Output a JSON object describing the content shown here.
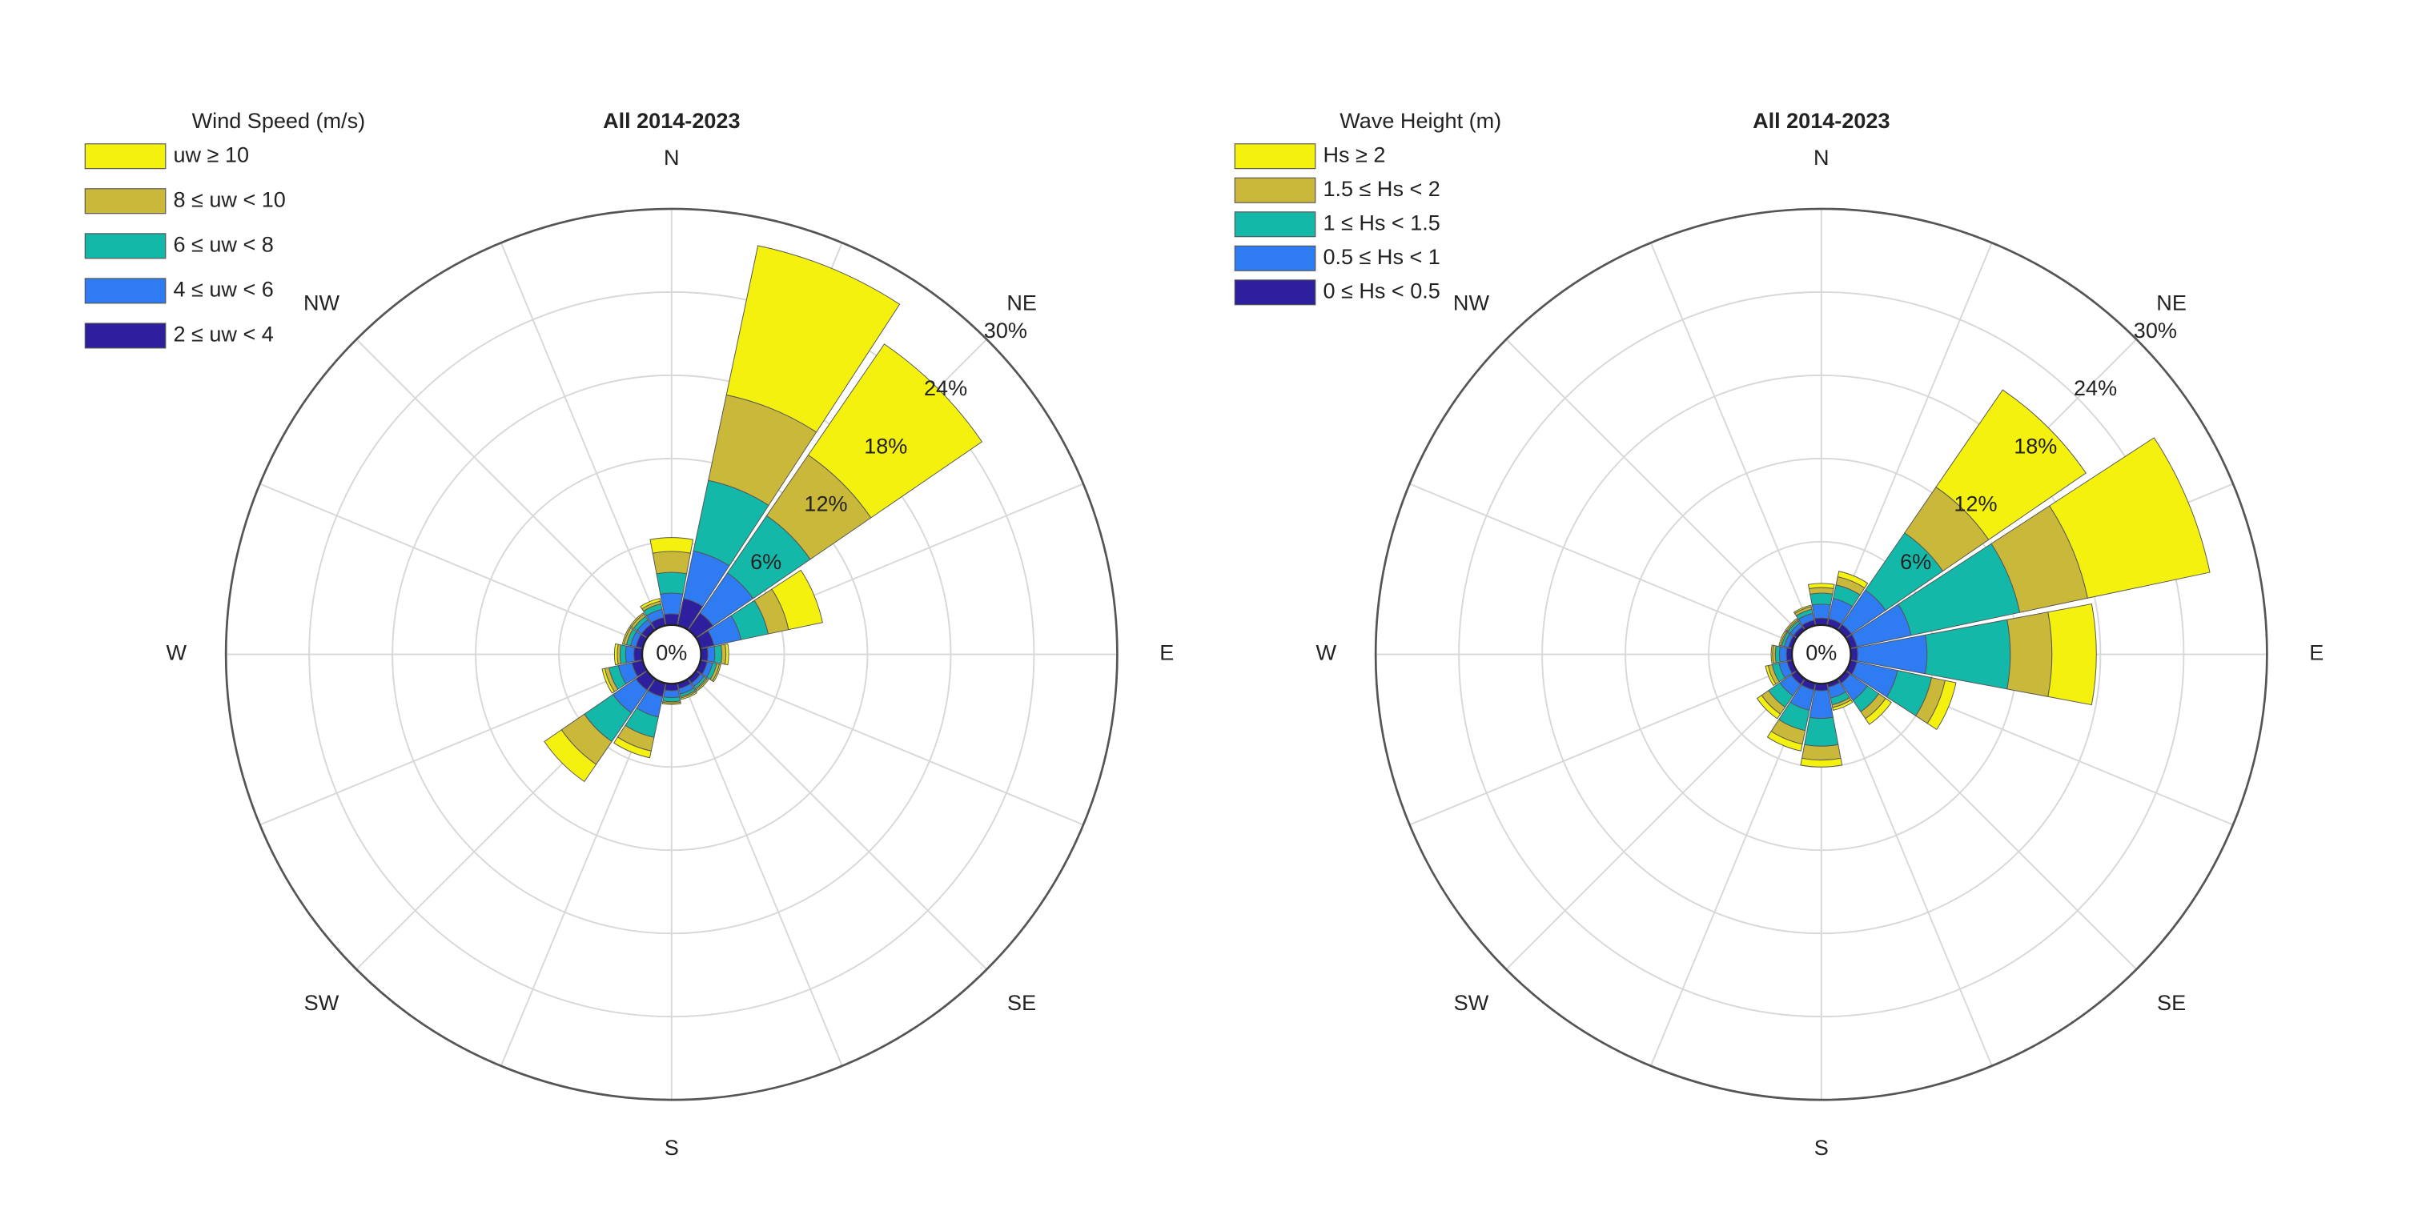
{
  "chart_data": [
    {
      "type": "rose",
      "title": "All 2014-2023",
      "legend_title": "Wind Speed (m/s)",
      "categories": [
        "N",
        null,
        "NE",
        null,
        "E",
        null,
        "SE",
        null,
        "S",
        null,
        "SW",
        null,
        "W",
        null,
        "NW",
        null
      ],
      "ylim": [
        0,
        30
      ],
      "yticks": [
        {
          "value": 0,
          "label": "0%"
        },
        {
          "value": 6,
          "label": "6%"
        },
        {
          "value": 12,
          "label": "12%"
        },
        {
          "value": 18,
          "label": "18%"
        },
        {
          "value": 24,
          "label": "24%"
        },
        {
          "value": 30,
          "label": "30%"
        }
      ],
      "series": [
        {
          "name": "2 ≤ uw < 4",
          "color": "#2e1f9e",
          "values": [
            0.8,
            2,
            1.5,
            1,
            0.5,
            0.5,
            0.4,
            0.4,
            0.5,
            1,
            1,
            0.8,
            0.6,
            0.5,
            0.5,
            0.6
          ]
        },
        {
          "name": "4 ≤ uw < 6",
          "color": "#2f7bf2",
          "values": [
            1.5,
            3.5,
            3.5,
            2,
            0.5,
            0.4,
            0.3,
            0.4,
            0.5,
            1.5,
            2,
            1,
            0.6,
            0.4,
            0.4,
            0.6
          ]
        },
        {
          "name": "6 ≤ uw < 8",
          "color": "#14b8a8",
          "values": [
            1.5,
            5.2,
            5,
            2,
            0.5,
            0.3,
            0.2,
            0.2,
            0.3,
            1.5,
            2.5,
            0.7,
            0.4,
            0.3,
            0.3,
            0.4
          ]
        },
        {
          "name": "8 ≤ uw < 10",
          "color": "#c9b83a",
          "values": [
            1.5,
            6.3,
            5.3,
            1.5,
            0.3,
            0.2,
            0.1,
            0.1,
            0.1,
            1,
            2,
            0.3,
            0.2,
            0.2,
            0.2,
            0.2
          ]
        },
        {
          "name": "uw ≥ 10",
          "color": "#f5f10f",
          "values": [
            1,
            11,
            9.7,
            2.5,
            0.2,
            0.1,
            0.1,
            0.1,
            0.1,
            0.5,
            1.5,
            0.2,
            0.2,
            0.1,
            0.1,
            0.2
          ]
        }
      ]
    },
    {
      "type": "rose",
      "title": "All 2014-2023",
      "legend_title": "Wave Height (m)",
      "categories": [
        "N",
        null,
        "NE",
        null,
        "E",
        null,
        "SE",
        null,
        "S",
        null,
        "SW",
        null,
        "W",
        null,
        "NW",
        null
      ],
      "ylim": [
        0,
        30
      ],
      "yticks": [
        {
          "value": 0,
          "label": "0%"
        },
        {
          "value": 6,
          "label": "6%"
        },
        {
          "value": 12,
          "label": "12%"
        },
        {
          "value": 18,
          "label": "18%"
        },
        {
          "value": 24,
          "label": "24%"
        },
        {
          "value": 30,
          "label": "30%"
        }
      ],
      "series": [
        {
          "name": "0 ≤ Hs < 0.5",
          "color": "#2e1f9e",
          "values": [
            0.5,
            0.5,
            0.5,
            0.5,
            0.5,
            0.5,
            0.4,
            0.3,
            0.5,
            0.5,
            0.5,
            0.4,
            0.4,
            0.3,
            0.3,
            0.4
          ]
        },
        {
          "name": "0.5 ≤ Hs < 1",
          "color": "#2f7bf2",
          "values": [
            1,
            1.5,
            3,
            4,
            5,
            3,
            1.5,
            0.8,
            2,
            1.5,
            1,
            0.6,
            0.5,
            0.3,
            0.3,
            0.5
          ]
        },
        {
          "name": "1 ≤ Hs < 1.5",
          "color": "#14b8a8",
          "values": [
            0.8,
            1,
            5,
            8,
            6,
            2.5,
            1,
            0.5,
            2,
            1.5,
            1,
            0.5,
            0.3,
            0.2,
            0.2,
            0.3
          ]
        },
        {
          "name": "1.5 ≤ Hs < 2",
          "color": "#c9b83a",
          "values": [
            0.4,
            0.6,
            4,
            5,
            3,
            1,
            0.6,
            0.2,
            1,
            1,
            0.6,
            0.3,
            0.2,
            0.1,
            0.1,
            0.2
          ]
        },
        {
          "name": "Hs ≥ 2",
          "color": "#f5f10f",
          "values": [
            0.3,
            0.4,
            8.5,
            9,
            3.2,
            0.8,
            0.5,
            0.2,
            0.5,
            0.5,
            0.4,
            0.2,
            0.1,
            0.1,
            0.1,
            0.1
          ]
        }
      ]
    }
  ]
}
